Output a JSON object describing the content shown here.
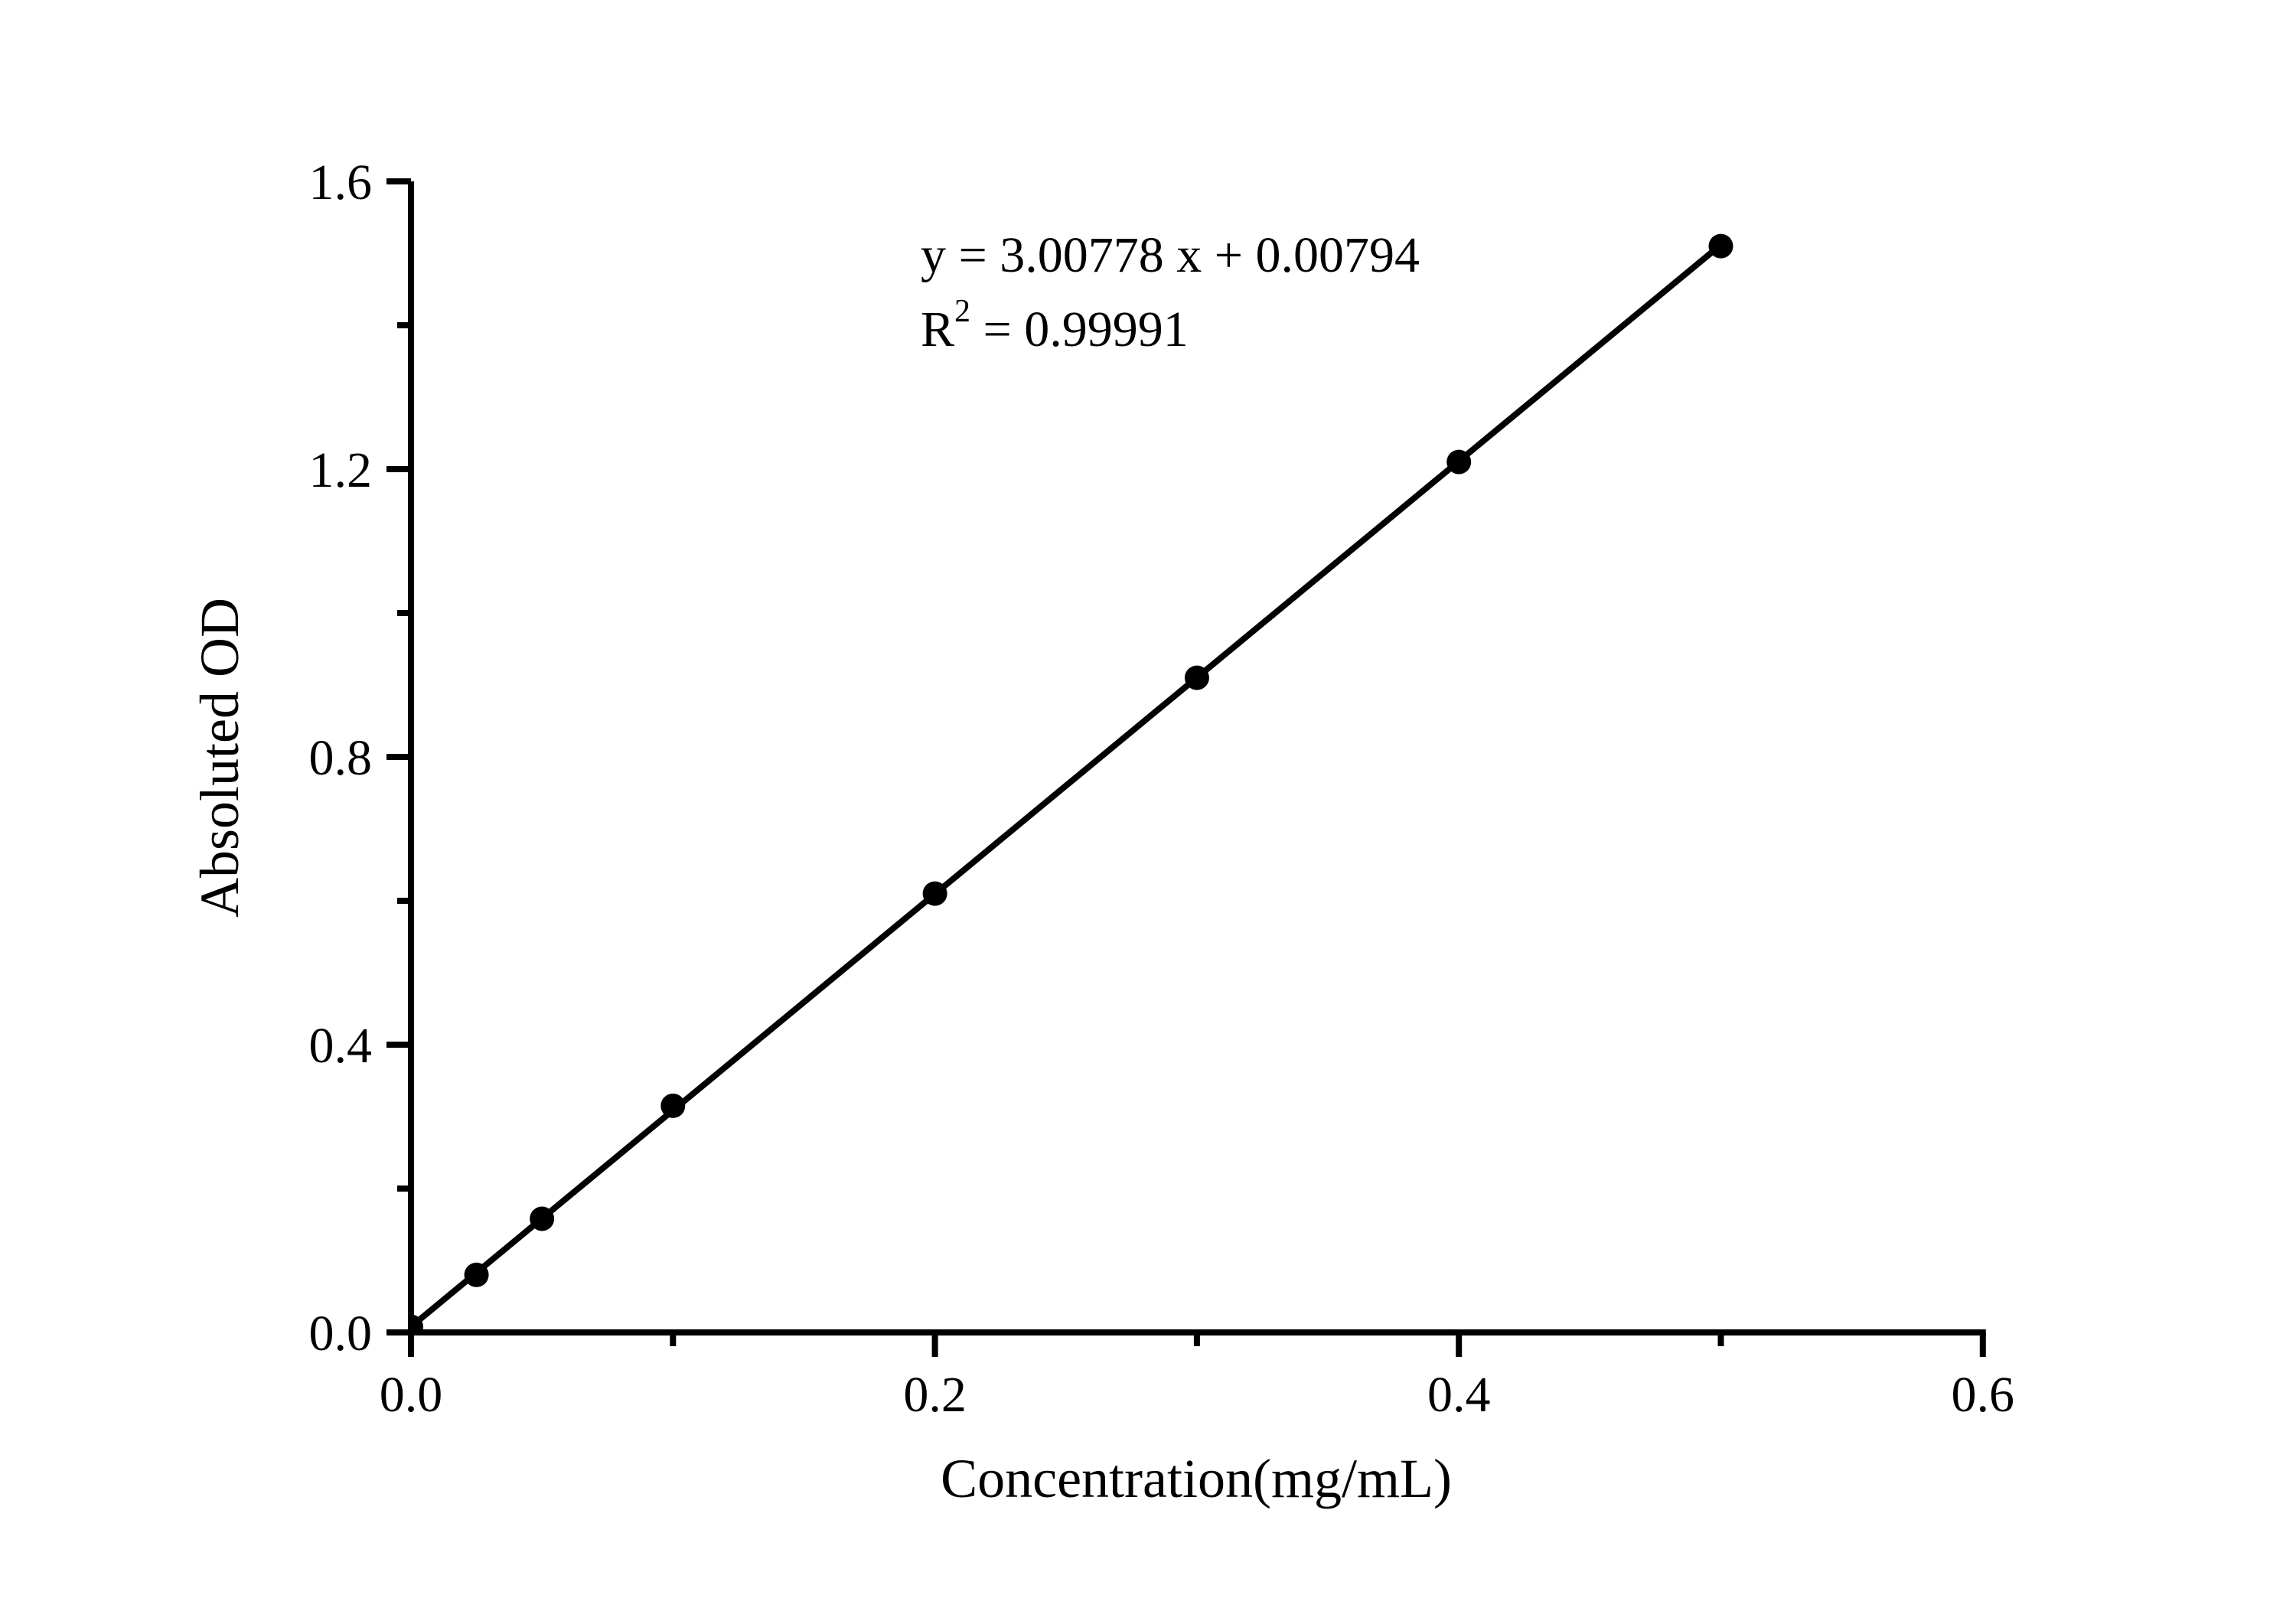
{
  "chart_data": {
    "type": "scatter",
    "xlabel": "Concentration(mg/mL)",
    "ylabel": "Absoluted OD",
    "x": [
      0,
      0.025,
      0.05,
      0.1,
      0.2,
      0.3,
      0.4,
      0.5
    ],
    "y": [
      0.008,
      0.08,
      0.158,
      0.315,
      0.61,
      0.91,
      1.21,
      1.51
    ],
    "series_name": "standard-curve-points",
    "fit": {
      "slope": 3.00778,
      "intercept": 0.00794,
      "x_start": 0,
      "x_end": 0.5
    },
    "equation_line1": "y = 3.00778 x + 0.00794",
    "r2_prefix": "R",
    "r2_sup": "2",
    "r2_rest": " = 0.99991",
    "r_squared": "0.99991",
    "xlim": [
      0,
      0.6
    ],
    "ylim": [
      0,
      1.6
    ],
    "x_ticks_major": [
      "0.0",
      "0.2",
      "0.4",
      "0.6"
    ],
    "x_ticks_major_values": [
      0,
      0.2,
      0.4,
      0.6
    ],
    "x_ticks_minor_values": [
      0.1,
      0.3,
      0.5
    ],
    "y_ticks_major": [
      "0.0",
      "0.4",
      "0.8",
      "1.2",
      "1.6"
    ],
    "y_ticks_major_values": [
      0,
      0.4,
      0.8,
      1.2,
      1.6
    ],
    "y_ticks_minor_values": [
      0.2,
      0.6,
      1.0,
      1.4
    ],
    "grid": "off",
    "legend": "none",
    "marker_color": "#000000",
    "line_color": "#000000",
    "axis_color": "#000000"
  }
}
